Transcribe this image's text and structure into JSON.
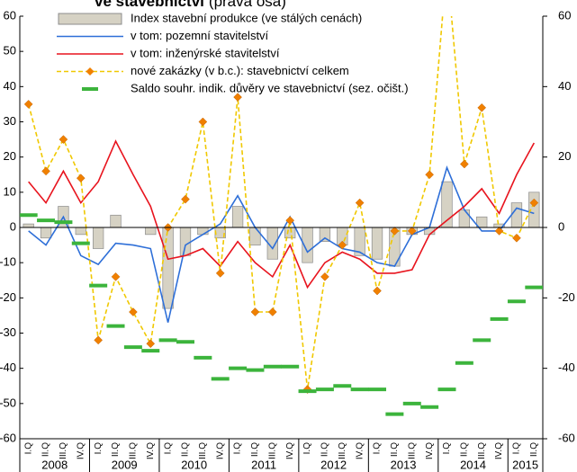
{
  "chart_data": {
    "type": "combo",
    "title": "ve stavebnictví",
    "subtitle": "(pravá osa)",
    "categories": [
      "I.Q",
      "II.Q",
      "III.Q",
      "IV.Q",
      "I.Q",
      "II.Q",
      "III.Q",
      "IV.Q",
      "I.Q",
      "II.Q",
      "III.Q",
      "IV.Q",
      "I.Q",
      "II.Q",
      "III.Q",
      "IV.Q",
      "I.Q",
      "II.Q",
      "III.Q",
      "IV.Q",
      "I.Q",
      "II.Q",
      "III.Q",
      "IV.Q",
      "I.Q",
      "II.Q",
      "III.Q",
      "IV.Q",
      "I.Q",
      "II.Q"
    ],
    "years": [
      "2008",
      "2009",
      "2010",
      "2011",
      "2012",
      "2013",
      "2014",
      "2015"
    ],
    "ylim": [
      -60,
      60
    ],
    "yticks": [
      -60,
      -50,
      -40,
      -30,
      -20,
      -10,
      0,
      10,
      20,
      30,
      40,
      50,
      60
    ],
    "y2lim": [
      -60,
      60
    ],
    "y2ticks": [
      -60,
      -40,
      -20,
      0,
      20,
      40,
      60
    ],
    "legend": "top-left",
    "series": [
      {
        "name": "Index stavební produkce (ve stálých cenách)",
        "type": "bar",
        "color": "#d6d2c4",
        "values": [
          1,
          -3,
          6,
          -2,
          -6,
          3.5,
          0,
          -2,
          -23,
          -8,
          -2,
          -3,
          6,
          -5,
          -9,
          -3,
          -10,
          -4,
          -5,
          -8,
          -9,
          -11,
          -2,
          -2,
          13,
          5,
          3,
          1,
          7,
          10
        ]
      },
      {
        "name": "v tom: pozemní stavitelství",
        "type": "line",
        "color": "#2e6fd8",
        "values": [
          -1,
          -5,
          3,
          -8,
          -10.5,
          -4.5,
          -5,
          -6,
          -27,
          -5,
          -2,
          1,
          9,
          0,
          -6,
          3,
          -7,
          -3,
          -6,
          -7,
          -10,
          -11,
          -2,
          0,
          17,
          5,
          -1,
          -1,
          5.5,
          4
        ]
      },
      {
        "name": "v tom: inženýrské stavitelství",
        "type": "line",
        "color": "#e8141e",
        "values": [
          13,
          7,
          16,
          7,
          13,
          24.5,
          15,
          6,
          -9,
          -8,
          -6,
          -11,
          -4,
          -10,
          -14,
          -5,
          -17,
          -10,
          -7,
          -9,
          -13,
          -13,
          -12,
          -2,
          2,
          6,
          11,
          4,
          15,
          24
        ]
      },
      {
        "name": "nové zakázky (v b.c.): stavebnictví celkem",
        "type": "line",
        "dashed": true,
        "marker": "diamond",
        "marker_color": "#f08000",
        "color": "#f0c800",
        "values": [
          35,
          16,
          25,
          14,
          -32,
          -14,
          -24,
          -33,
          0,
          8,
          30,
          -13,
          37,
          -24,
          -24,
          2,
          -46,
          -14,
          -5,
          7,
          -18,
          -1,
          -1,
          15,
          75,
          18,
          34,
          -1,
          -3,
          7
        ]
      },
      {
        "name": "Saldo souhr. indik. důvěry ve stavebnictví (sez. očišt.)",
        "type": "marker",
        "marker": "dash",
        "axis": "y2",
        "color": "#3cb43c",
        "values": [
          3.5,
          2,
          1.5,
          -4.5,
          -16.5,
          -28,
          -34,
          -35,
          -32,
          -32.5,
          -37,
          -43,
          -40,
          -40.5,
          -39.5,
          -39.5,
          -46.5,
          -46,
          -45,
          -46,
          -46,
          -53,
          -50,
          -51,
          -46,
          -38.5,
          -32,
          -26,
          -21,
          -17
        ]
      }
    ]
  }
}
